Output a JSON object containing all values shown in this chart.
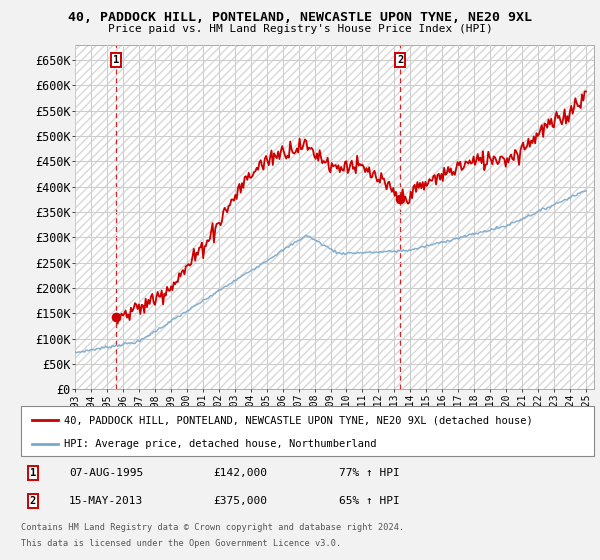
{
  "title": "40, PADDOCK HILL, PONTELAND, NEWCASTLE UPON TYNE, NE20 9XL",
  "subtitle": "Price paid vs. HM Land Registry's House Price Index (HPI)",
  "legend_line1": "40, PADDOCK HILL, PONTELAND, NEWCASTLE UPON TYNE, NE20 9XL (detached house)",
  "legend_line2": "HPI: Average price, detached house, Northumberland",
  "annotation1_date": "07-AUG-1995",
  "annotation1_price": "£142,000",
  "annotation1_pct": "77% ↑ HPI",
  "annotation2_date": "15-MAY-2013",
  "annotation2_price": "£375,000",
  "annotation2_pct": "65% ↑ HPI",
  "footnote1": "Contains HM Land Registry data © Crown copyright and database right 2024.",
  "footnote2": "This data is licensed under the Open Government Licence v3.0.",
  "property_color": "#cc0000",
  "hpi_color": "#7aa8cc",
  "background_color": "#f2f2f2",
  "hatch_color": "#d8d8d8",
  "grid_color": "#cccccc",
  "ylim": [
    0,
    680000
  ],
  "yticks": [
    0,
    50000,
    100000,
    150000,
    200000,
    250000,
    300000,
    350000,
    400000,
    450000,
    500000,
    550000,
    600000,
    650000
  ],
  "xlim_start": 1993,
  "xlim_end": 2025.5,
  "sale1_x": 1995.58,
  "sale1_y": 142000,
  "sale2_x": 2013.37,
  "sale2_y": 375000
}
